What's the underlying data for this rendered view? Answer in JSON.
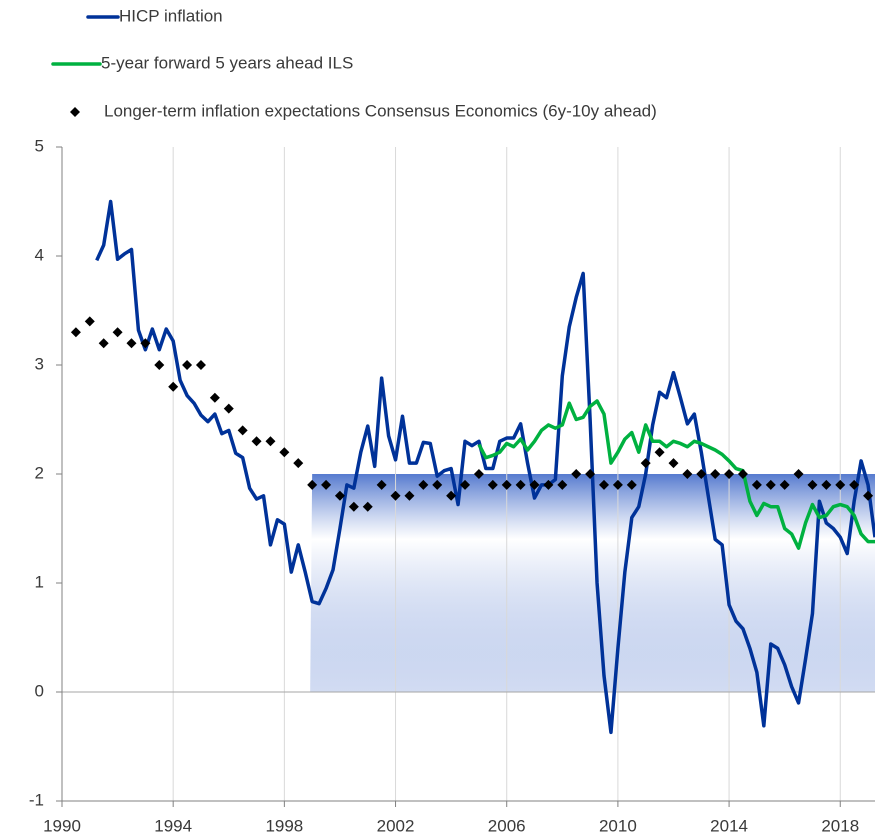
{
  "chart_data": {
    "type": "line",
    "xlim": [
      1990,
      2019.25
    ],
    "xticks": [
      1990,
      1994,
      1998,
      2002,
      2006,
      2010,
      2014,
      2018
    ],
    "ylim": [
      -1,
      5
    ],
    "yticks": [
      -1,
      0,
      1,
      2,
      3,
      4,
      5
    ],
    "grid": "x",
    "band": {
      "x": [
        1999,
        2019.25
      ],
      "y": [
        0,
        2
      ],
      "color": "#1e4fbf"
    },
    "series": [
      {
        "name": "HICP inflation",
        "color": "#003299",
        "mark": "line",
        "x": [
          1991.25,
          1991.5,
          1991.75,
          1992,
          1992.25,
          1992.5,
          1992.75,
          1993,
          1993.25,
          1993.5,
          1993.75,
          1994,
          1994.25,
          1994.5,
          1994.75,
          1995,
          1995.25,
          1995.5,
          1995.75,
          1996,
          1996.25,
          1996.5,
          1996.75,
          1997,
          1997.25,
          1997.5,
          1997.75,
          1998,
          1998.25,
          1998.5,
          1998.75,
          1999,
          1999.25,
          1999.5,
          1999.75,
          2000,
          2000.25,
          2000.5,
          2000.75,
          2001,
          2001.25,
          2001.5,
          2001.75,
          2002,
          2002.25,
          2002.5,
          2002.75,
          2003,
          2003.25,
          2003.5,
          2003.75,
          2004,
          2004.25,
          2004.5,
          2004.75,
          2005,
          2005.25,
          2005.5,
          2005.75,
          2006,
          2006.25,
          2006.5,
          2006.75,
          2007,
          2007.25,
          2007.5,
          2007.75,
          2008,
          2008.25,
          2008.5,
          2008.75,
          2009,
          2009.25,
          2009.5,
          2009.75,
          2010,
          2010.25,
          2010.5,
          2010.75,
          2011,
          2011.25,
          2011.5,
          2011.75,
          2012,
          2012.25,
          2012.5,
          2012.75,
          2013,
          2013.25,
          2013.5,
          2013.75,
          2014,
          2014.25,
          2014.5,
          2014.75,
          2015,
          2015.25,
          2015.5,
          2015.75,
          2016,
          2016.25,
          2016.5,
          2016.75,
          2017,
          2017.25,
          2017.5,
          2017.75,
          2018,
          2018.25,
          2018.5,
          2018.75,
          2019,
          2019.25
        ],
        "values": [
          3.96,
          4.1,
          4.5,
          3.97,
          4.02,
          4.06,
          3.32,
          3.14,
          3.33,
          3.14,
          3.33,
          3.22,
          2.86,
          2.72,
          2.65,
          2.54,
          2.48,
          2.55,
          2.37,
          2.4,
          2.19,
          2.15,
          1.87,
          1.77,
          1.8,
          1.35,
          1.58,
          1.54,
          1.1,
          1.35,
          1.1,
          0.83,
          0.81,
          0.95,
          1.12,
          1.5,
          1.9,
          1.87,
          2.2,
          2.44,
          2.07,
          2.88,
          2.35,
          2.13,
          2.53,
          2.1,
          2.1,
          2.29,
          2.28,
          1.98,
          2.03,
          2.05,
          1.72,
          2.3,
          2.26,
          2.3,
          2.05,
          2.05,
          2.3,
          2.33,
          2.33,
          2.46,
          2.1,
          1.78,
          1.9,
          1.9,
          1.95,
          2.9,
          3.35,
          3.62,
          3.84,
          2.5,
          1.0,
          0.15,
          -0.37,
          0.4,
          1.1,
          1.6,
          1.7,
          2.0,
          2.45,
          2.75,
          2.7,
          2.93,
          2.7,
          2.46,
          2.55,
          2.2,
          1.8,
          1.4,
          1.35,
          0.8,
          0.65,
          0.58,
          0.4,
          0.18,
          -0.31,
          0.44,
          0.4,
          0.25,
          0.05,
          -0.1,
          0.3,
          0.72,
          1.75,
          1.55,
          1.5,
          1.42,
          1.27,
          1.75,
          2.12,
          1.9,
          1.42
        ]
      },
      {
        "name": "5-year forward 5 years ahead ILS",
        "color": "#00b140",
        "mark": "line",
        "x": [
          2005,
          2005.25,
          2005.5,
          2005.75,
          2006,
          2006.25,
          2006.5,
          2006.75,
          2007,
          2007.25,
          2007.5,
          2007.75,
          2008,
          2008.25,
          2008.5,
          2008.75,
          2009,
          2009.25,
          2009.5,
          2009.75,
          2010,
          2010.25,
          2010.5,
          2010.75,
          2011,
          2011.25,
          2011.5,
          2011.75,
          2012,
          2012.25,
          2012.5,
          2012.75,
          2013,
          2013.25,
          2013.5,
          2013.75,
          2014,
          2014.25,
          2014.5,
          2014.75,
          2015,
          2015.25,
          2015.5,
          2015.75,
          2016,
          2016.25,
          2016.5,
          2016.75,
          2017,
          2017.25,
          2017.5,
          2017.75,
          2018,
          2018.25,
          2018.5,
          2018.75,
          2019,
          2019.25
        ],
        "values": [
          2.27,
          2.15,
          2.17,
          2.2,
          2.28,
          2.25,
          2.32,
          2.22,
          2.3,
          2.4,
          2.45,
          2.42,
          2.45,
          2.65,
          2.5,
          2.52,
          2.62,
          2.67,
          2.55,
          2.1,
          2.2,
          2.32,
          2.38,
          2.2,
          2.45,
          2.3,
          2.3,
          2.25,
          2.3,
          2.28,
          2.25,
          2.3,
          2.28,
          2.25,
          2.22,
          2.18,
          2.12,
          2.05,
          2.03,
          1.75,
          1.62,
          1.73,
          1.7,
          1.7,
          1.5,
          1.45,
          1.32,
          1.55,
          1.72,
          1.6,
          1.62,
          1.7,
          1.72,
          1.7,
          1.62,
          1.45,
          1.38,
          1.38
        ]
      },
      {
        "name": "Longer-term inflation expectations Consensus Economics (6y-10y ahead)",
        "color": "#000000",
        "mark": "diamond",
        "x": [
          1990.5,
          1991,
          1991.5,
          1992,
          1992.5,
          1993,
          1993.5,
          1994,
          1994.5,
          1995,
          1995.5,
          1996,
          1996.5,
          1997,
          1997.5,
          1998,
          1998.5,
          1999,
          1999.5,
          2000,
          2000.5,
          2001,
          2001.5,
          2002,
          2002.5,
          2003,
          2003.5,
          2004,
          2004.5,
          2005,
          2005.5,
          2006,
          2006.5,
          2007,
          2007.5,
          2008,
          2008.5,
          2009,
          2009.5,
          2010,
          2010.5,
          2011,
          2011.5,
          2012,
          2012.5,
          2013,
          2013.5,
          2014,
          2014.5,
          2015,
          2015.5,
          2016,
          2016.5,
          2017,
          2017.5,
          2018,
          2018.5,
          2019
        ],
        "values": [
          3.3,
          3.4,
          3.2,
          3.3,
          3.2,
          3.2,
          3.0,
          2.8,
          3.0,
          3.0,
          2.7,
          2.6,
          2.4,
          2.3,
          2.3,
          2.2,
          2.1,
          1.9,
          1.9,
          1.8,
          1.7,
          1.7,
          1.9,
          1.8,
          1.8,
          1.9,
          1.9,
          1.8,
          1.9,
          2.0,
          1.9,
          1.9,
          1.9,
          1.9,
          1.9,
          1.9,
          2.0,
          2.0,
          1.9,
          1.9,
          1.9,
          2.1,
          2.2,
          2.1,
          2.0,
          2.0,
          2.0,
          2.0,
          2.0,
          1.9,
          1.9,
          1.9,
          2.0,
          1.9,
          1.9,
          1.9,
          1.9,
          1.8
        ]
      }
    ]
  }
}
